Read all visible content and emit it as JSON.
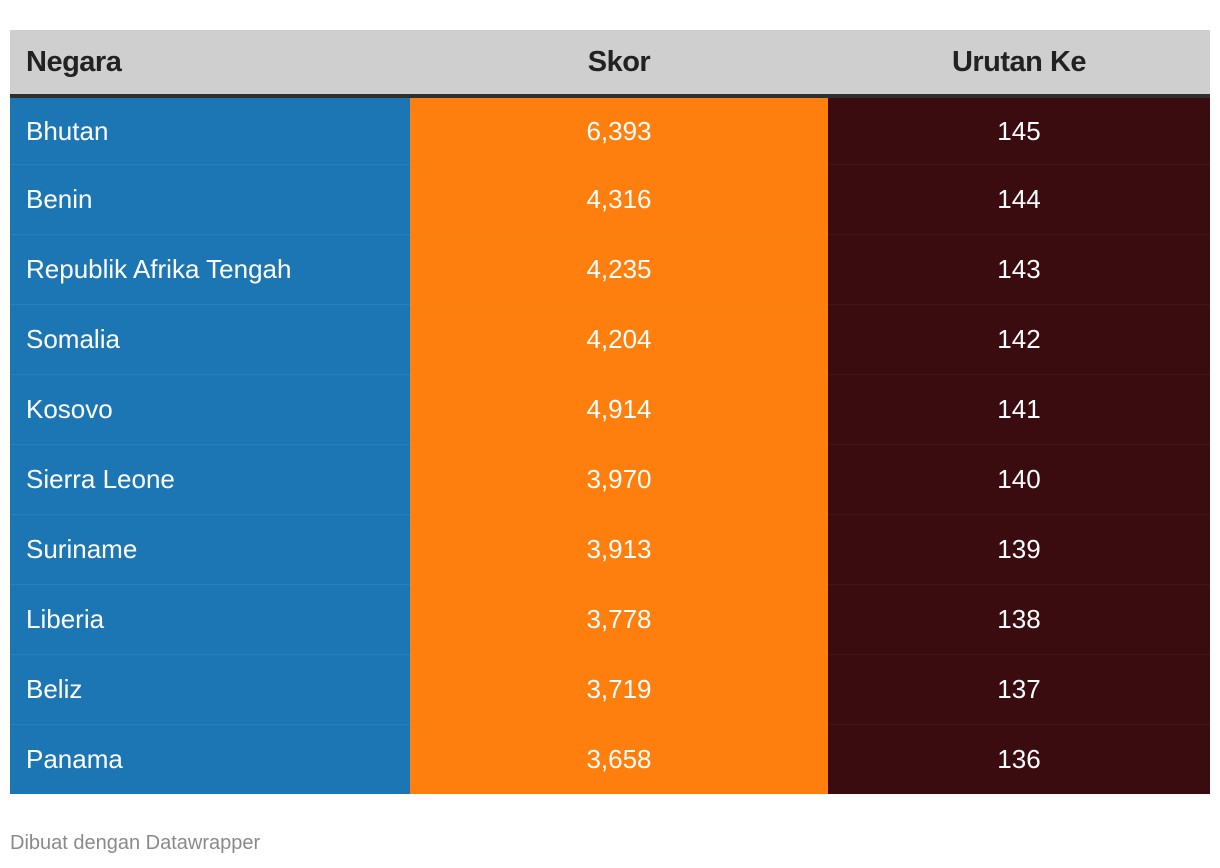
{
  "chart_data": {
    "type": "table",
    "columns": [
      "Negara",
      "Skor",
      "Urutan Ke"
    ],
    "rows": [
      {
        "country": "Bhutan",
        "score": "6,393",
        "rank": "145"
      },
      {
        "country": "Benin",
        "score": "4,316",
        "rank": "144"
      },
      {
        "country": "Republik Afrika Tengah",
        "score": "4,235",
        "rank": "143"
      },
      {
        "country": "Somalia",
        "score": "4,204",
        "rank": "142"
      },
      {
        "country": "Kosovo",
        "score": "4,914",
        "rank": "141"
      },
      {
        "country": "Sierra Leone",
        "score": "3,970",
        "rank": "140"
      },
      {
        "country": "Suriname",
        "score": "3,913",
        "rank": "139"
      },
      {
        "country": "Liberia",
        "score": "3,778",
        "rank": "138"
      },
      {
        "country": "Beliz",
        "score": "3,719",
        "rank": "137"
      },
      {
        "country": "Panama",
        "score": "3,658",
        "rank": "136"
      }
    ],
    "colors": {
      "header_bg": "#cfcfcf",
      "country_column": "#1d76b4",
      "score_column": "#fe7f0e",
      "rank_column": "#3a0b0f"
    }
  },
  "footer": {
    "credit": "Dibuat dengan Datawrapper"
  }
}
